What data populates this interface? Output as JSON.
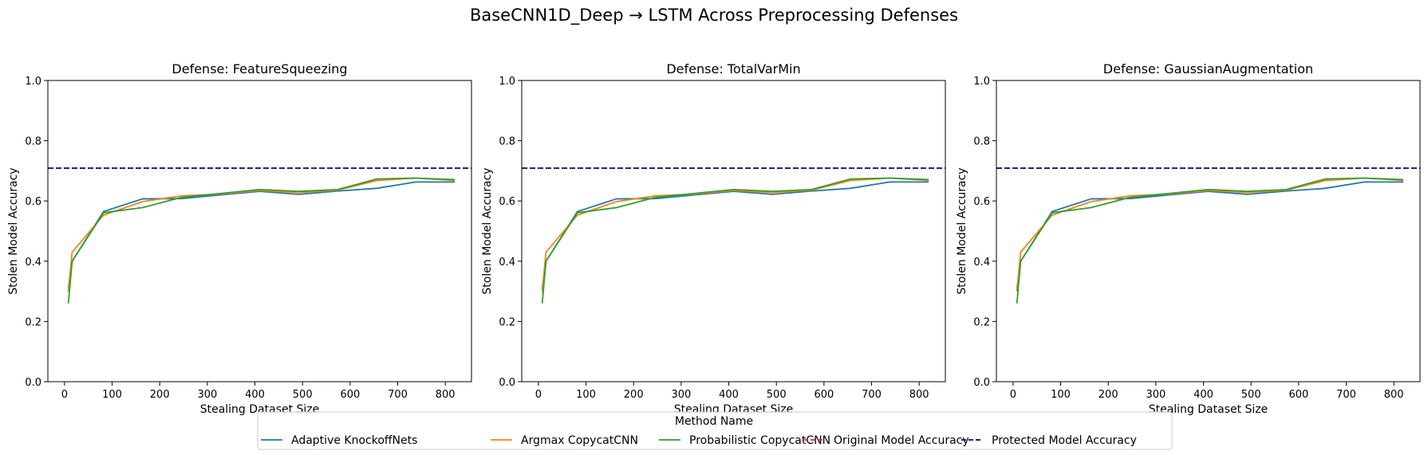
{
  "figure": {
    "title": "BaseCNN1D_Deep → LSTM Across Preprocessing Defenses",
    "legend": {
      "title": "Method Name",
      "placement": "bottom-center",
      "entries": [
        {
          "label": "Adaptive KnockoffNets",
          "color": "#1f77b4",
          "style": "solid"
        },
        {
          "label": "Argmax CopycatCNN",
          "color": "#ff7f0e",
          "style": "solid"
        },
        {
          "label": "Probabilistic CopycatCNN",
          "color": "#2ca02c",
          "style": "solid"
        },
        {
          "label": "Original Model Accuracy",
          "color": "#d62728",
          "style": "dashed"
        },
        {
          "label": "Protected Model Accuracy",
          "color": "#00008b",
          "style": "dashed"
        }
      ]
    }
  },
  "chart_data": [
    {
      "type": "line",
      "title": "Defense: FeatureSqueezing",
      "xlabel": "Stealing Dataset Size",
      "ylabel": "Stolen Model Accuracy",
      "xlim": [
        -35,
        855
      ],
      "ylim": [
        0.0,
        1.0
      ],
      "xticks": [
        0,
        100,
        200,
        300,
        400,
        500,
        600,
        700,
        800
      ],
      "yticks": [
        0.0,
        0.2,
        0.4,
        0.6,
        0.8,
        1.0
      ],
      "grid": false,
      "x": [
        8,
        16,
        82,
        164,
        246,
        328,
        410,
        492,
        574,
        656,
        738,
        820
      ],
      "series": [
        {
          "name": "Adaptive KnockoffNets",
          "color": "#1f77b4",
          "values": [
            0.31,
            0.4,
            0.565,
            0.607,
            0.608,
            0.62,
            0.632,
            0.622,
            0.633,
            0.642,
            0.663,
            0.663
          ]
        },
        {
          "name": "Argmax CopycatCNN",
          "color": "#ff7f0e",
          "values": [
            0.3,
            0.43,
            0.553,
            0.598,
            0.617,
            0.623,
            0.635,
            0.628,
            0.636,
            0.668,
            0.676,
            0.668
          ]
        },
        {
          "name": "Probabilistic CopycatCNN",
          "color": "#2ca02c",
          "values": [
            0.26,
            0.4,
            0.561,
            0.578,
            0.612,
            0.625,
            0.638,
            0.632,
            0.638,
            0.673,
            0.676,
            0.671
          ]
        }
      ],
      "hlines": [
        {
          "name": "Protected Model Accuracy",
          "y": 0.709,
          "color": "#00008b",
          "style": "dashed"
        }
      ]
    },
    {
      "type": "line",
      "title": "Defense: TotalVarMin",
      "xlabel": "Stealing Dataset Size",
      "ylabel": "Stolen Model Accuracy",
      "xlim": [
        -35,
        855
      ],
      "ylim": [
        0.0,
        1.0
      ],
      "xticks": [
        0,
        100,
        200,
        300,
        400,
        500,
        600,
        700,
        800
      ],
      "yticks": [
        0.0,
        0.2,
        0.4,
        0.6,
        0.8,
        1.0
      ],
      "grid": false,
      "x": [
        8,
        16,
        82,
        164,
        246,
        328,
        410,
        492,
        574,
        656,
        738,
        820
      ],
      "series": [
        {
          "name": "Adaptive KnockoffNets",
          "color": "#1f77b4",
          "values": [
            0.31,
            0.4,
            0.565,
            0.607,
            0.608,
            0.62,
            0.632,
            0.622,
            0.633,
            0.642,
            0.663,
            0.663
          ]
        },
        {
          "name": "Argmax CopycatCNN",
          "color": "#ff7f0e",
          "values": [
            0.3,
            0.43,
            0.553,
            0.598,
            0.617,
            0.623,
            0.635,
            0.628,
            0.636,
            0.668,
            0.676,
            0.668
          ]
        },
        {
          "name": "Probabilistic CopycatCNN",
          "color": "#2ca02c",
          "values": [
            0.26,
            0.4,
            0.561,
            0.578,
            0.612,
            0.625,
            0.638,
            0.632,
            0.638,
            0.673,
            0.676,
            0.671
          ]
        }
      ],
      "hlines": [
        {
          "name": "Protected Model Accuracy",
          "y": 0.709,
          "color": "#00008b",
          "style": "dashed"
        }
      ]
    },
    {
      "type": "line",
      "title": "Defense: GaussianAugmentation",
      "xlabel": "Stealing Dataset Size",
      "ylabel": "Stolen Model Accuracy",
      "xlim": [
        -35,
        855
      ],
      "ylim": [
        0.0,
        1.0
      ],
      "xticks": [
        0,
        100,
        200,
        300,
        400,
        500,
        600,
        700,
        800
      ],
      "yticks": [
        0.0,
        0.2,
        0.4,
        0.6,
        0.8,
        1.0
      ],
      "grid": false,
      "x": [
        8,
        16,
        82,
        164,
        246,
        328,
        410,
        492,
        574,
        656,
        738,
        820
      ],
      "series": [
        {
          "name": "Adaptive KnockoffNets",
          "color": "#1f77b4",
          "values": [
            0.31,
            0.4,
            0.565,
            0.607,
            0.608,
            0.62,
            0.632,
            0.622,
            0.633,
            0.642,
            0.663,
            0.663
          ]
        },
        {
          "name": "Argmax CopycatCNN",
          "color": "#ff7f0e",
          "values": [
            0.3,
            0.43,
            0.553,
            0.598,
            0.617,
            0.623,
            0.635,
            0.628,
            0.636,
            0.668,
            0.676,
            0.668
          ]
        },
        {
          "name": "Probabilistic CopycatCNN",
          "color": "#2ca02c",
          "values": [
            0.26,
            0.4,
            0.561,
            0.578,
            0.612,
            0.625,
            0.638,
            0.632,
            0.638,
            0.673,
            0.676,
            0.671
          ]
        }
      ],
      "hlines": [
        {
          "name": "Protected Model Accuracy",
          "y": 0.709,
          "color": "#00008b",
          "style": "dashed"
        }
      ]
    }
  ]
}
